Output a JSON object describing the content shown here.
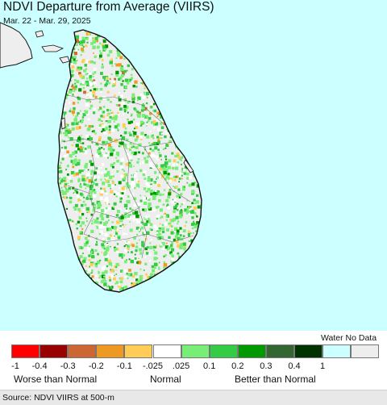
{
  "title": "NDVI Departure from Average (VIIRS)",
  "subtitle": "Mar. 22 - Mar. 29, 2025",
  "colors": {
    "water": "#ccffff",
    "land_base": "#eeeeee",
    "normal_white": "#ffffff",
    "green_light": "#77ee77",
    "green_mid": "#33cc44",
    "green_dark": "#009900",
    "brown": "#cc6633",
    "orange": "#ee9922",
    "yellow": "#ffcc55"
  },
  "legend": {
    "water_no_data_label": "Water No Data",
    "swatches": [
      {
        "name": "-1 to -0.4",
        "color": "#ff0000"
      },
      {
        "name": "-0.4 to -0.3",
        "color": "#990000"
      },
      {
        "name": "-0.3 to -0.2",
        "color": "#cc6633"
      },
      {
        "name": "-0.2 to -0.1",
        "color": "#ee9922"
      },
      {
        "name": "-0.1 to -0.025",
        "color": "#ffcc55"
      },
      {
        "name": "-0.025 to 0.025",
        "color": "#ffffff"
      },
      {
        "name": "0.025 to 0.1",
        "color": "#77ee77"
      },
      {
        "name": "0.1 to 0.2",
        "color": "#33cc44"
      },
      {
        "name": "0.2 to 0.3",
        "color": "#009900"
      },
      {
        "name": "0.3 to 0.4",
        "color": "#336633"
      },
      {
        "name": "0.4 to 1",
        "color": "#003300"
      },
      {
        "name": "water",
        "color": "#ccffff"
      },
      {
        "name": "no data",
        "color": "#eeeeee"
      }
    ],
    "ticks": [
      "-1",
      "-0.4",
      "-0.3",
      "-0.2",
      "-0.1",
      "-.025",
      ".025",
      "0.1",
      "0.2",
      "0.3",
      "0.4",
      "1"
    ],
    "captions": {
      "worse": "Worse than Normal",
      "normal": "Normal",
      "better": "Better than Normal"
    }
  },
  "source": "Source: NDVI VIIRS at 500-m"
}
